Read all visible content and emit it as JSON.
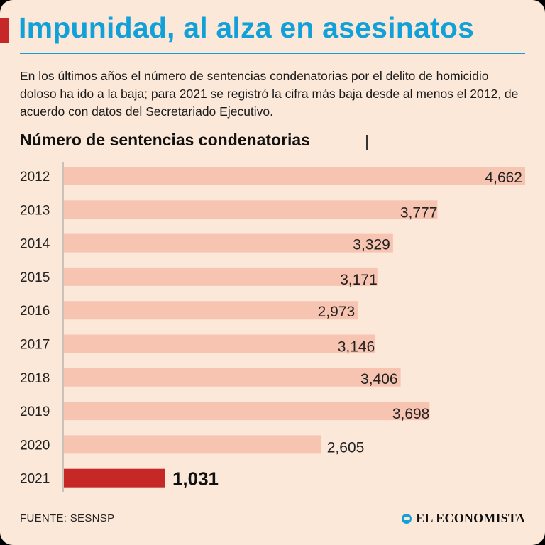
{
  "header": {
    "title": "Impunidad, al alza en asesinatos",
    "description": "En los últimos años el número de sentencias condenatorias por el delito de homicidio doloso ha ido a la baja; para 2021 se registró la cifra más baja desde al menos el 2012, de acuerdo con datos del Secretariado Ejecutivo."
  },
  "chart_data": {
    "type": "bar",
    "orientation": "horizontal",
    "title": "Número de sentencias condenatorias",
    "categories": [
      "2012",
      "2013",
      "2014",
      "2015",
      "2016",
      "2017",
      "2018",
      "2019",
      "2020",
      "2021"
    ],
    "values": [
      4662,
      3777,
      3329,
      3171,
      2973,
      3146,
      3406,
      3698,
      2605,
      1031
    ],
    "value_labels": [
      "4,662",
      "3,777",
      "3,329",
      "3,171",
      "2,973",
      "3,146",
      "3,406",
      "3,698",
      "2,605",
      "1,031"
    ],
    "highlight_category": "2021",
    "xlim": [
      0,
      4662
    ],
    "xlabel": "",
    "ylabel": "",
    "grid": false
  },
  "footer": {
    "source": "FUENTE: SESNSP",
    "logo_text": "EL ECONOMISTA"
  },
  "colors": {
    "title": "#12a0d8",
    "accent": "#c62828",
    "bar": "#f7c4b2",
    "bar_highlight": "#c62828",
    "background": "#fbe8d9"
  },
  "icons": {
    "logo": "el-economista-logo-icon"
  }
}
